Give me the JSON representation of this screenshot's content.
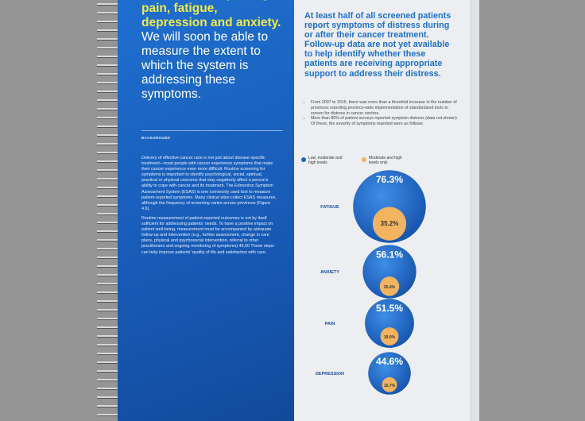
{
  "left_page": {
    "headline": "Patients are reporting pain, fatigue, depression and anxiety.",
    "subheadline": "We will soon be able to measure the extent to which the system is addressing these symptoms.",
    "section_label": "BACKGROUND",
    "paragraphs": [
      "Delivery of effective cancer care is not just about disease-specific treatment—most people with cancer experience symptoms that make their cancer experience even more difficult. Routine screening for symptoms is important to identify psychological, social, spiritual, practical or physical concerns that may negatively affect a person’s ability to cope with cancer and its treatment. The Edmonton Symptom Assessment System (ESAS) is one commonly used tool to measure patient-reported symptoms. Many clinical sites collect ESAS measures, although the frequency of screening varies across provinces (Figure 4.6).",
      "Routine measurement of patient-reported outcomes is not by itself sufficient for addressing patients’ needs. To have a positive impact on patient well-being, measurement must be accompanied by adequate follow-up and intervention (e.g., further assessment, change in care plans, physical and psychosocial intervention, referral to other practitioners and ongoing monitoring of symptoms).49,50 These steps can help improve patients’ quality of life and satisfaction with care."
    ]
  },
  "right_page": {
    "heading": "At least half of all screened patients report symptoms of distress during or after their cancer treatment. Follow-up data are not yet available to help identify whether these patients are receiving appropriate support to address their distress.",
    "bullets": [
      "From 2007 to 2015, there was more than a threefold increase in the number of provinces reporting province-wide implementation of standardized tools to screen for distress in cancer centres.",
      "More than 80% of patient surveys reported symptom distress (data not shown). Of these, the severity of symptoms reported were as follows:"
    ]
  },
  "chart_data": {
    "type": "bubble",
    "categories": [
      "FATIGUE",
      "ANXIETY",
      "PAIN",
      "DEPRESSION"
    ],
    "series": [
      {
        "name": "Low, moderate and high levels",
        "color": "#1d63c4",
        "values": [
          76.3,
          56.1,
          51.5,
          44.6
        ],
        "value_labels": [
          "76.3%",
          "56.1%",
          "51.5%",
          "44.6%"
        ]
      },
      {
        "name": "Moderate and high levels only",
        "color": "#f2b45e",
        "values": [
          35.2,
          20.4,
          19.0,
          15.7
        ],
        "value_labels": [
          "35.2%",
          "20.4%",
          "19.0%",
          "15.7%"
        ]
      }
    ]
  }
}
